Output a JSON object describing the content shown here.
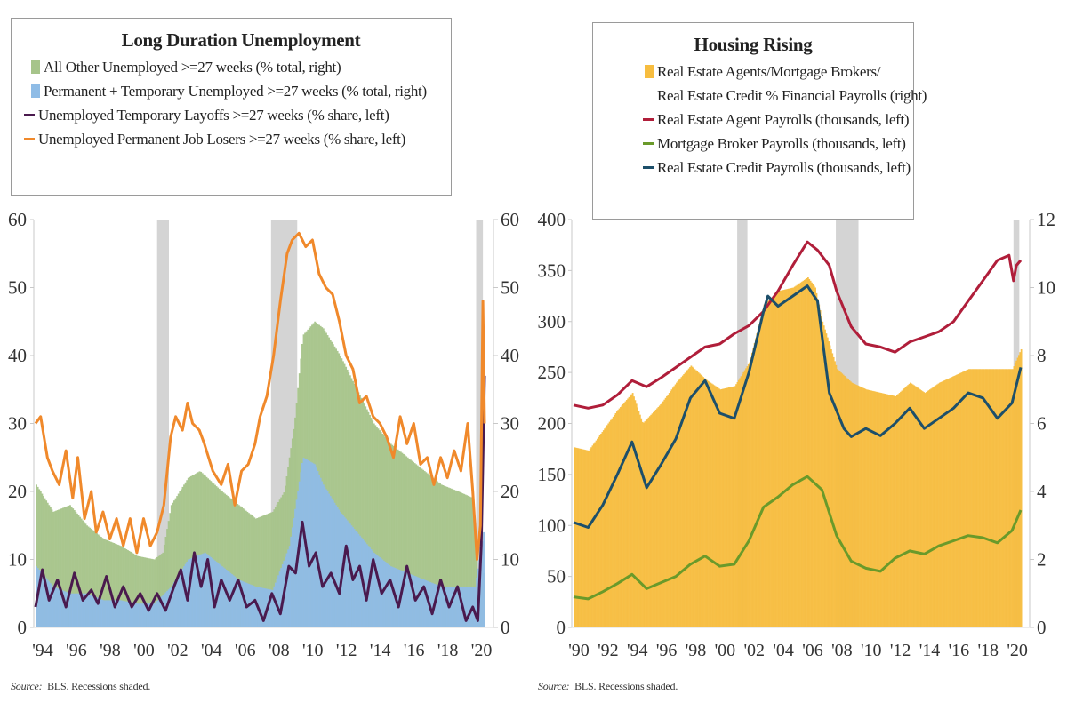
{
  "chart_data": [
    {
      "type": "bar+line",
      "title": "Long Duration Unemployment",
      "source_label": "Source:",
      "source": "BLS. Recessions shaded.",
      "x_tick_labels": [
        "'94",
        "'96",
        "'98",
        "'00",
        "'02",
        "'04",
        "'06",
        "'08",
        "'10",
        "'12",
        "'14",
        "'16",
        "'18",
        "'20"
      ],
      "x_range": [
        1994.0,
        2020.6
      ],
      "y_left": {
        "range": [
          0,
          60
        ],
        "ticks": [
          "0",
          "10",
          "20",
          "30",
          "40",
          "50",
          "60"
        ]
      },
      "y_right": {
        "range": [
          0,
          60
        ],
        "ticks": [
          "0",
          "10",
          "20",
          "30",
          "40",
          "50",
          "60"
        ]
      },
      "recessions": [
        [
          2001.2,
          2001.9
        ],
        [
          2007.95,
          2009.5
        ],
        [
          2020.1,
          2020.5
        ]
      ],
      "legend": [
        {
          "label": "All Other Unemployed >=27 weeks (% total, right)",
          "kind": "bar",
          "color": "#a6c48a"
        },
        {
          "label": "Permanent + Temporary Unemployed >=27 weeks (% total, right)",
          "kind": "bar",
          "color": "#8fbce6"
        },
        {
          "label": "Unemployed Temporary Layoffs >=27 weeks (% share, left)",
          "kind": "line",
          "color": "#4a1a4e"
        },
        {
          "label": "Unemployed Permanent Job Losers >=27 weeks (% share, left)",
          "kind": "line",
          "color": "#f0892b"
        }
      ],
      "series": [
        {
          "name": "All Other Unemployed >=27 weeks (% total, right)",
          "axis": "right",
          "x": [
            1994,
            1995,
            1996,
            1997,
            1998,
            1999,
            2000,
            2001,
            2001.5,
            2002,
            2003,
            2003.7,
            2005,
            2006,
            2007,
            2008,
            2008.7,
            2009.3,
            2009.8,
            2010.5,
            2011,
            2012,
            2013,
            2014,
            2015,
            2016,
            2017,
            2018,
            2019,
            2019.9,
            2020.2,
            2020.5
          ],
          "values": [
            21,
            17,
            18,
            15,
            13,
            12,
            10.5,
            10,
            11,
            18,
            22,
            23,
            20,
            18,
            16,
            17,
            20,
            30,
            43,
            45,
            44,
            40,
            35,
            30,
            27,
            25,
            23,
            21,
            20,
            19,
            5,
            8
          ]
        },
        {
          "name": "Permanent + Temporary Unemployed >=27 weeks (% total, right)",
          "axis": "right",
          "x": [
            1994,
            1995,
            1996,
            1997,
            1998,
            1999,
            2000,
            2001,
            2002,
            2003,
            2004,
            2005,
            2006,
            2007,
            2008,
            2009,
            2009.8,
            2010.5,
            2011,
            2012,
            2013,
            2014,
            2015,
            2016,
            2017,
            2018,
            2019,
            2020,
            2020.5
          ],
          "values": [
            9,
            6,
            5,
            5,
            4,
            4,
            3.5,
            3.5,
            6,
            10,
            11,
            9,
            7,
            6,
            5.5,
            12,
            25,
            24,
            21,
            17,
            14,
            11,
            9,
            8,
            7,
            6,
            6,
            6,
            14
          ]
        },
        {
          "name": "Unemployed Temporary Layoffs >=27 weeks (% share, left)",
          "axis": "left",
          "x": [
            1994,
            1994.4,
            1994.8,
            1995.3,
            1995.8,
            1996.3,
            1996.8,
            1997.3,
            1997.7,
            1998.2,
            1998.7,
            1999.2,
            1999.7,
            2000.2,
            2000.7,
            2001.2,
            2001.7,
            2002.2,
            2002.6,
            2003.0,
            2003.4,
            2003.8,
            2004.2,
            2004.6,
            2005.0,
            2005.5,
            2006.0,
            2006.5,
            2007.0,
            2007.5,
            2008.0,
            2008.5,
            2009.0,
            2009.4,
            2009.8,
            2010.2,
            2010.6,
            2011.0,
            2011.5,
            2012.0,
            2012.4,
            2012.8,
            2013.2,
            2013.6,
            2014.0,
            2014.5,
            2015.0,
            2015.5,
            2016.0,
            2016.5,
            2017.0,
            2017.5,
            2018.0,
            2018.5,
            2019.0,
            2019.5,
            2019.9,
            2020.2,
            2020.4,
            2020.6
          ],
          "values": [
            3,
            8.5,
            4,
            7,
            3,
            8,
            4,
            5.5,
            3.5,
            7.5,
            3,
            6,
            3,
            5,
            2.5,
            5,
            2.5,
            6,
            8.5,
            4,
            11,
            6,
            10,
            3,
            7,
            4,
            7,
            3,
            4,
            1,
            5,
            2,
            9,
            8,
            15.5,
            9,
            11,
            6,
            8,
            5,
            12,
            7,
            9,
            4,
            10,
            5,
            7,
            3,
            9,
            4,
            6,
            2,
            7,
            3,
            6,
            1,
            3,
            1,
            12,
            37
          ]
        },
        {
          "name": "Unemployed Permanent Job Losers >=27 weeks (% share, left)",
          "axis": "left",
          "x": [
            1994,
            1994.3,
            1994.7,
            1995.0,
            1995.4,
            1995.8,
            1996.2,
            1996.5,
            1996.9,
            1997.3,
            1997.6,
            1998.0,
            1998.4,
            1998.8,
            1999.2,
            1999.6,
            2000.0,
            2000.4,
            2000.8,
            2001.2,
            2001.6,
            2002.0,
            2002.3,
            2002.7,
            2003.0,
            2003.3,
            2003.7,
            2004.0,
            2004.5,
            2005.0,
            2005.4,
            2005.8,
            2006.2,
            2006.6,
            2007.0,
            2007.3,
            2007.7,
            2008.1,
            2008.5,
            2008.9,
            2009.2,
            2009.6,
            2010.0,
            2010.4,
            2010.8,
            2011.2,
            2011.6,
            2012.0,
            2012.4,
            2012.8,
            2013.2,
            2013.6,
            2014.0,
            2014.4,
            2014.8,
            2015.2,
            2015.6,
            2016.0,
            2016.4,
            2016.8,
            2017.2,
            2017.6,
            2018.0,
            2018.4,
            2018.8,
            2019.2,
            2019.6,
            2019.9,
            2020.15,
            2020.35,
            2020.5,
            2020.6
          ],
          "values": [
            30,
            31,
            25,
            23,
            21,
            26,
            19,
            25,
            16,
            20,
            14,
            17,
            13,
            16,
            12,
            16,
            11,
            16,
            12,
            14,
            18,
            28,
            31,
            29,
            33,
            30,
            29,
            27,
            23,
            21,
            24,
            18,
            23,
            24,
            27,
            31,
            34,
            40,
            48,
            55,
            57,
            58,
            56,
            57,
            52,
            50,
            49,
            45,
            40,
            38,
            33,
            34,
            31,
            30,
            28,
            25,
            31,
            27,
            30,
            24,
            25,
            21,
            25,
            22,
            26,
            23,
            30,
            20,
            10,
            15,
            48,
            30
          ]
        }
      ]
    },
    {
      "type": "bar+line",
      "title": "Housing Rising",
      "source_label": "Source:",
      "source": "BLS. Recessions shaded.",
      "x_tick_labels": [
        "'90",
        "'92",
        "'94",
        "'96",
        "'98",
        "'00",
        "'02",
        "'04",
        "'06",
        "'08",
        "'10",
        "'12",
        "'14",
        "'16",
        "'18",
        "'20"
      ],
      "x_range": [
        1990.0,
        2020.6
      ],
      "y_left": {
        "range": [
          0,
          400
        ],
        "ticks": [
          "0",
          "50",
          "100",
          "150",
          "200",
          "250",
          "300",
          "350",
          "400"
        ]
      },
      "y_right": {
        "range": [
          0,
          12
        ],
        "ticks": [
          "0",
          "2",
          "4",
          "6",
          "8",
          "10",
          "12"
        ]
      },
      "recessions": [
        [
          2001.2,
          2001.9
        ],
        [
          2007.95,
          2009.5
        ],
        [
          2020.1,
          2020.5
        ]
      ],
      "legend": [
        {
          "label": "Real Estate Agents/Mortgage Brokers/",
          "label2": "Real Estate Credit % Financial Payrolls (right)",
          "kind": "bar",
          "color": "#f7bd3f"
        },
        {
          "label": "Real Estate Agent Payrolls (thousands, left)",
          "kind": "line",
          "color": "#b01e3a"
        },
        {
          "label": "Mortgage Broker Payrolls (thousands, left)",
          "kind": "line",
          "color": "#6a9a2a"
        },
        {
          "label": "Real Estate Credit Payrolls (thousands, left)",
          "kind": "line",
          "color": "#1d4f6a"
        }
      ],
      "series": [
        {
          "name": "Real Estate Agents/Mortgage Brokers/Real Estate Credit % Financial Payrolls (right)",
          "axis": "right",
          "x": [
            1990,
            1991,
            1992,
            1993,
            1994,
            1994.7,
            1996,
            1997,
            1998,
            1999,
            2000,
            2001,
            2002,
            2003,
            2004,
            2005,
            2006,
            2006.5,
            2007,
            2008,
            2009,
            2010,
            2011,
            2012,
            2013,
            2014,
            2015,
            2016,
            2017,
            2018,
            2019,
            2020,
            2020.6
          ],
          "values": [
            5.3,
            5.2,
            5.8,
            6.4,
            6.9,
            6.0,
            6.6,
            7.2,
            7.7,
            7.3,
            7.0,
            7.1,
            7.8,
            9.5,
            9.9,
            10.0,
            10.3,
            10.0,
            9.0,
            7.6,
            7.2,
            7.0,
            6.9,
            6.8,
            7.2,
            6.9,
            7.2,
            7.4,
            7.6,
            7.6,
            7.6,
            7.6,
            8.2
          ]
        },
        {
          "name": "Real Estate Agent Payrolls (thousands, left)",
          "axis": "left",
          "x": [
            1990,
            1991,
            1992,
            1993,
            1994,
            1995,
            1996,
            1997,
            1998,
            1999,
            2000,
            2001,
            2002,
            2003,
            2004,
            2005,
            2006,
            2006.7,
            2007.5,
            2008,
            2009,
            2010,
            2011,
            2012,
            2013,
            2014,
            2015,
            2016,
            2017,
            2018,
            2019,
            2019.8,
            2020.1,
            2020.3,
            2020.6
          ],
          "values": [
            218,
            215,
            218,
            228,
            242,
            236,
            245,
            255,
            265,
            275,
            278,
            288,
            296,
            310,
            330,
            355,
            378,
            370,
            355,
            330,
            295,
            278,
            275,
            270,
            280,
            285,
            290,
            300,
            320,
            340,
            360,
            365,
            340,
            355,
            360
          ]
        },
        {
          "name": "Mortgage Broker Payrolls (thousands, left)",
          "axis": "left",
          "x": [
            1990,
            1991,
            1992,
            1993,
            1994,
            1995,
            1996,
            1997,
            1998,
            1999,
            2000,
            2001,
            2002,
            2003,
            2004,
            2005,
            2006,
            2007,
            2008,
            2009,
            2010,
            2011,
            2012,
            2013,
            2014,
            2015,
            2016,
            2017,
            2018,
            2019,
            2020,
            2020.6
          ],
          "values": [
            30,
            28,
            35,
            43,
            52,
            38,
            44,
            50,
            62,
            70,
            60,
            62,
            85,
            118,
            128,
            140,
            148,
            135,
            90,
            65,
            58,
            55,
            68,
            75,
            72,
            80,
            85,
            90,
            88,
            83,
            95,
            115
          ]
        },
        {
          "name": "Real Estate Credit Payrolls (thousands, left)",
          "axis": "left",
          "x": [
            1990,
            1991,
            1992,
            1993,
            1994,
            1995,
            1996,
            1997,
            1998,
            1999,
            2000,
            2001,
            2002,
            2003,
            2003.3,
            2004,
            2005,
            2006,
            2006.7,
            2007.5,
            2008.5,
            2009,
            2010,
            2011,
            2012,
            2013,
            2014,
            2015,
            2016,
            2017,
            2018,
            2019,
            2020,
            2020.6
          ],
          "values": [
            103,
            98,
            120,
            150,
            182,
            137,
            160,
            185,
            225,
            242,
            210,
            205,
            250,
            310,
            325,
            315,
            325,
            335,
            320,
            230,
            195,
            187,
            195,
            188,
            200,
            215,
            195,
            205,
            215,
            230,
            225,
            205,
            220,
            255
          ]
        }
      ]
    }
  ],
  "legend1": {
    "title": "Long Duration Unemployment",
    "items": [
      "All Other Unemployed >=27 weeks (% total, right)",
      "Permanent + Temporary Unemployed >=27 weeks (% total, right)",
      "Unemployed Temporary Layoffs >=27 weeks (% share, left)",
      "Unemployed Permanent Job Losers >=27 weeks (% share, left)"
    ]
  },
  "legend2": {
    "title": "Housing Rising",
    "items": [
      "Real Estate Agents/Mortgage Brokers/",
      "Real Estate Credit % Financial Payrolls (right)",
      "Real Estate Agent Payrolls (thousands, left)",
      "Mortgage Broker Payrolls (thousands, left)",
      "Real Estate Credit Payrolls (thousands, left)"
    ]
  },
  "footer": {
    "source_label": "Source:",
    "source_text": "BLS. Recessions shaded."
  }
}
